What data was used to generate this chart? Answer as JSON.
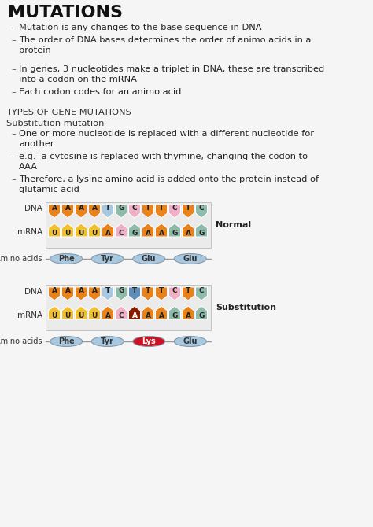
{
  "title": "MUTATIONS",
  "background_color": "#f5f5f5",
  "bullet_points_1": [
    "Mutation is any changes to the base sequence in DNA",
    "The order of DNA bases determines the order of animo acids in a\nprotein"
  ],
  "bullet_points_2": [
    "In genes, 3 nucleotides make a triplet in DNA, these are transcribed\ninto a codon on the mRNA",
    "Each codon codes for an animo acid"
  ],
  "section_title": "TYPES OF GENE MUTATIONS",
  "subsection_title": "Substitution mutation",
  "sub_bullets": [
    "One or more nucleotide is replaced with a different nucleotide for\nanother",
    "e.g.  a cytosine is replaced with thymine, changing the codon to\nAAA",
    "Therefore, a lysine amino acid is added onto the protein instead of\nglutamic acid"
  ],
  "normal_dna": [
    "A",
    "A",
    "A",
    "A",
    "T",
    "G",
    "C",
    "T",
    "T",
    "C",
    "T",
    "C"
  ],
  "normal_dna_colors": [
    "#E8821A",
    "#E8821A",
    "#E8821A",
    "#E8821A",
    "#A8C8E0",
    "#8FBCAA",
    "#F0B0C8",
    "#E8821A",
    "#E8821A",
    "#F0B0C8",
    "#E8821A",
    "#8FBCAA"
  ],
  "normal_mrna": [
    "U",
    "U",
    "U",
    "U",
    "A",
    "C",
    "G",
    "A",
    "A",
    "G",
    "A",
    "G"
  ],
  "normal_mrna_colors": [
    "#F0C030",
    "#F0C030",
    "#F0C030",
    "#F0C030",
    "#E8821A",
    "#F0B0C8",
    "#8FBCAA",
    "#E8821A",
    "#E8821A",
    "#8FBCAA",
    "#E8821A",
    "#8FBCAA"
  ],
  "normal_amino": [
    "Phe",
    "Tyr",
    "Glu",
    "Glu"
  ],
  "normal_amino_colors": [
    "#A8C8E0",
    "#A8C8E0",
    "#A8C8E0",
    "#A8C8E0"
  ],
  "sub_dna": [
    "A",
    "A",
    "A",
    "A",
    "T",
    "G",
    "T",
    "T",
    "T",
    "C",
    "T",
    "C"
  ],
  "sub_dna_colors": [
    "#E8821A",
    "#E8821A",
    "#E8821A",
    "#E8821A",
    "#A8C8E0",
    "#8FBCAA",
    "#5B8DB8",
    "#E8821A",
    "#E8821A",
    "#F0B0C8",
    "#E8821A",
    "#8FBCAA"
  ],
  "sub_mrna": [
    "U",
    "U",
    "U",
    "U",
    "A",
    "C",
    "A",
    "A",
    "A",
    "G",
    "A",
    "G"
  ],
  "sub_mrna_colors": [
    "#F0C030",
    "#F0C030",
    "#F0C030",
    "#F0C030",
    "#E8821A",
    "#F0B0C8",
    "#8B1A00",
    "#E8821A",
    "#E8821A",
    "#8FBCAA",
    "#E8821A",
    "#8FBCAA"
  ],
  "sub_mrna_white": [
    6
  ],
  "sub_amino": [
    "Phe",
    "Tyr",
    "Lys",
    "Glu"
  ],
  "sub_amino_colors": [
    "#A8C8E0",
    "#A8C8E0",
    "#CC1122",
    "#A8C8E0"
  ]
}
